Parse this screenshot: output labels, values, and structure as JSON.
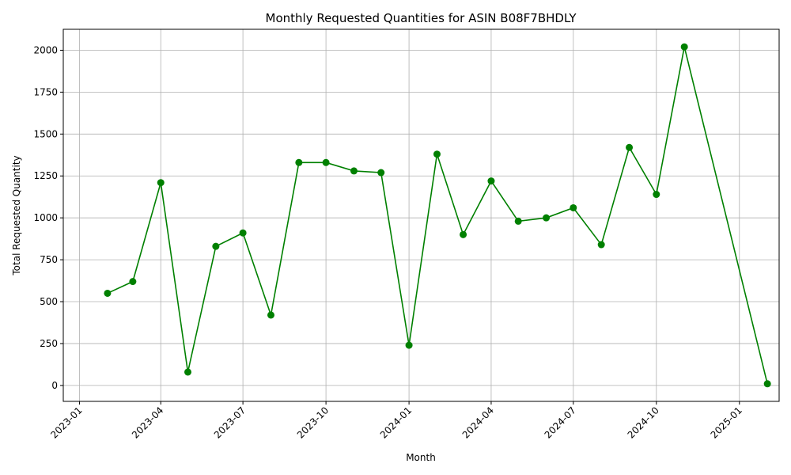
{
  "chart_data": {
    "type": "line",
    "title": "Monthly Requested Quantities for ASIN B08F7BHDLY",
    "xlabel": "Month",
    "ylabel": "Total Requested Quantity",
    "x_ticks": [
      "2023-01",
      "2023-04",
      "2023-07",
      "2023-10",
      "2024-01",
      "2024-04",
      "2024-07",
      "2024-10",
      "2025-01"
    ],
    "y_ticks": [
      "0",
      "250",
      "500",
      "750",
      "1000",
      "1250",
      "1500",
      "1750",
      "2000"
    ],
    "xlim": [
      "2022-12-14",
      "2025-02-14"
    ],
    "ylim": [
      -95,
      2125
    ],
    "grid": true,
    "series": [
      {
        "color": "#008000",
        "marker": "circle",
        "x": [
          "2023-02-01",
          "2023-03-01",
          "2023-04-01",
          "2023-05-01",
          "2023-06-01",
          "2023-07-01",
          "2023-08-01",
          "2023-09-01",
          "2023-10-01",
          "2023-11-01",
          "2023-12-01",
          "2024-01-01",
          "2024-02-01",
          "2024-03-01",
          "2024-04-01",
          "2024-05-01",
          "2024-06-01",
          "2024-07-01",
          "2024-08-01",
          "2024-09-01",
          "2024-10-01",
          "2024-11-01",
          "2025-02-01"
        ],
        "values": [
          550,
          620,
          1210,
          80,
          830,
          910,
          420,
          1330,
          1330,
          1280,
          1270,
          240,
          1380,
          900,
          1220,
          980,
          1000,
          1060,
          840,
          1420,
          1140,
          2020,
          10
        ]
      }
    ]
  }
}
